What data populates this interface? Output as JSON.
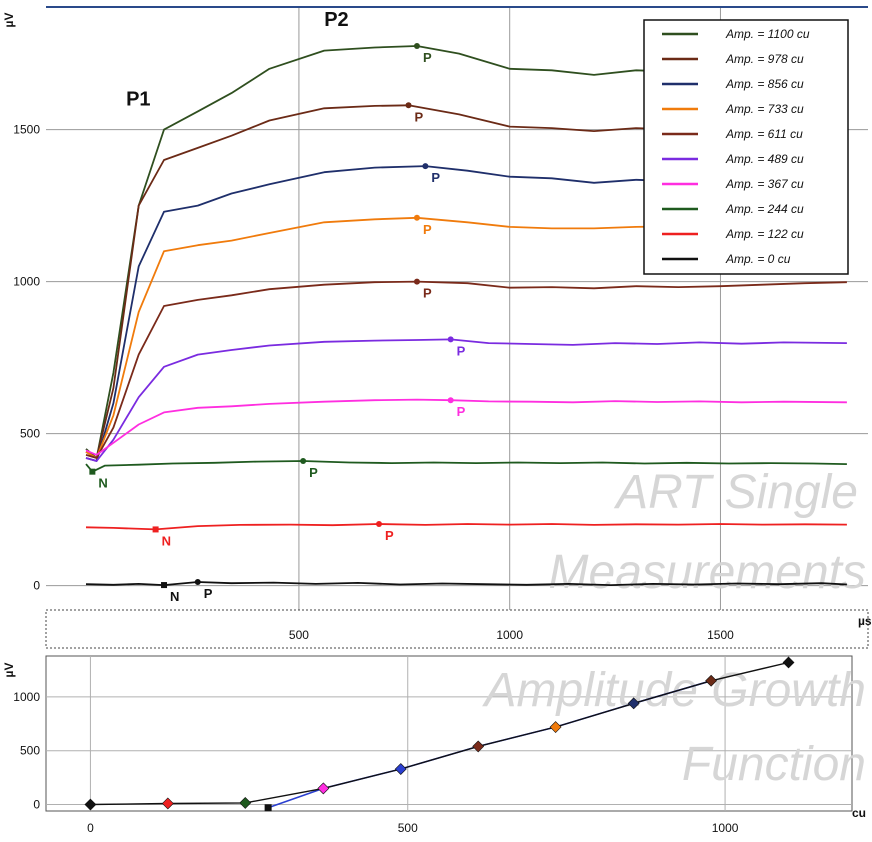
{
  "watermarks": {
    "top_line1": "ART Single",
    "top_line2": "Measurements",
    "bottom_line1": "Amplitude Growth",
    "bottom_line2": "Function"
  },
  "chart_data": [
    {
      "type": "line",
      "ylabel": "µV",
      "xlabel": "µs",
      "xlim": [
        -100,
        1850
      ],
      "ylim": [
        -80,
        1900
      ],
      "x_ticks": [
        500,
        1000,
        1500
      ],
      "y_ticks": [
        0,
        500,
        1000,
        1500
      ],
      "grid": true,
      "legend_position": "top-right",
      "annotations": [
        {
          "text": "P1",
          "x": 90,
          "y": 1580
        },
        {
          "text": "P2",
          "x": 560,
          "y": 1840
        }
      ],
      "series": [
        {
          "name": "Amp. = 1100 cu",
          "color": "#2f4f1f",
          "peaks": [
            {
              "label": "P",
              "x": 780,
              "y": 1775
            }
          ],
          "points": [
            [
              -5,
              450
            ],
            [
              20,
              420
            ],
            [
              60,
              700
            ],
            [
              120,
              1250
            ],
            [
              180,
              1500
            ],
            [
              260,
              1560
            ],
            [
              340,
              1620
            ],
            [
              430,
              1700
            ],
            [
              560,
              1760
            ],
            [
              680,
              1770
            ],
            [
              780,
              1775
            ],
            [
              880,
              1750
            ],
            [
              1000,
              1700
            ],
            [
              1100,
              1695
            ],
            [
              1200,
              1680
            ],
            [
              1300,
              1695
            ],
            [
              1400,
              1690
            ],
            [
              1500,
              1700
            ],
            [
              1600,
              1720
            ],
            [
              1700,
              1740
            ],
            [
              1800,
              1790
            ]
          ]
        },
        {
          "name": "Amp. = 978 cu",
          "color": "#6b2a16",
          "peaks": [
            {
              "label": "P",
              "x": 760,
              "y": 1580
            }
          ],
          "points": [
            [
              -5,
              440
            ],
            [
              20,
              420
            ],
            [
              60,
              650
            ],
            [
              120,
              1250
            ],
            [
              180,
              1400
            ],
            [
              260,
              1440
            ],
            [
              340,
              1480
            ],
            [
              430,
              1530
            ],
            [
              560,
              1570
            ],
            [
              680,
              1578
            ],
            [
              760,
              1580
            ],
            [
              880,
              1550
            ],
            [
              1000,
              1510
            ],
            [
              1100,
              1505
            ],
            [
              1200,
              1495
            ],
            [
              1300,
              1505
            ],
            [
              1400,
              1500
            ],
            [
              1500,
              1505
            ],
            [
              1600,
              1530
            ],
            [
              1700,
              1560
            ],
            [
              1800,
              1600
            ]
          ]
        },
        {
          "name": "Amp. = 856 cu",
          "color": "#1f2f6b",
          "peaks": [
            {
              "label": "P",
              "x": 800,
              "y": 1380
            }
          ],
          "points": [
            [
              -5,
              420
            ],
            [
              20,
              410
            ],
            [
              60,
              600
            ],
            [
              120,
              1050
            ],
            [
              180,
              1230
            ],
            [
              260,
              1250
            ],
            [
              340,
              1290
            ],
            [
              430,
              1320
            ],
            [
              560,
              1360
            ],
            [
              680,
              1375
            ],
            [
              800,
              1380
            ],
            [
              900,
              1365
            ],
            [
              1000,
              1345
            ],
            [
              1100,
              1340
            ],
            [
              1200,
              1325
            ],
            [
              1300,
              1335
            ],
            [
              1400,
              1330
            ],
            [
              1500,
              1335
            ],
            [
              1600,
              1350
            ],
            [
              1700,
              1370
            ],
            [
              1800,
              1395
            ]
          ]
        },
        {
          "name": "Amp. = 733 cu",
          "color": "#f07b0c",
          "peaks": [
            {
              "label": "P",
              "x": 780,
              "y": 1210
            }
          ],
          "points": [
            [
              -5,
              440
            ],
            [
              20,
              420
            ],
            [
              60,
              560
            ],
            [
              120,
              900
            ],
            [
              180,
              1100
            ],
            [
              260,
              1120
            ],
            [
              340,
              1135
            ],
            [
              430,
              1160
            ],
            [
              560,
              1195
            ],
            [
              680,
              1205
            ],
            [
              780,
              1210
            ],
            [
              900,
              1195
            ],
            [
              1000,
              1180
            ],
            [
              1100,
              1175
            ],
            [
              1200,
              1175
            ],
            [
              1300,
              1180
            ],
            [
              1400,
              1182
            ],
            [
              1500,
              1180
            ],
            [
              1600,
              1185
            ],
            [
              1700,
              1190
            ],
            [
              1800,
              1195
            ]
          ]
        },
        {
          "name": "Amp. = 611 cu",
          "color": "#7a2a1a",
          "peaks": [
            {
              "label": "P",
              "x": 780,
              "y": 1000
            }
          ],
          "points": [
            [
              -5,
              430
            ],
            [
              20,
              420
            ],
            [
              60,
              520
            ],
            [
              120,
              760
            ],
            [
              180,
              920
            ],
            [
              260,
              940
            ],
            [
              340,
              955
            ],
            [
              430,
              975
            ],
            [
              560,
              990
            ],
            [
              680,
              998
            ],
            [
              780,
              1000
            ],
            [
              900,
              995
            ],
            [
              1000,
              980
            ],
            [
              1100,
              982
            ],
            [
              1200,
              978
            ],
            [
              1300,
              985
            ],
            [
              1400,
              982
            ],
            [
              1500,
              985
            ],
            [
              1600,
              990
            ],
            [
              1700,
              995
            ],
            [
              1800,
              998
            ]
          ]
        },
        {
          "name": "Amp. = 489 cu",
          "color": "#7a2be0",
          "peaks": [
            {
              "label": "P",
              "x": 860,
              "y": 810
            }
          ],
          "points": [
            [
              -5,
              420
            ],
            [
              20,
              410
            ],
            [
              60,
              480
            ],
            [
              120,
              620
            ],
            [
              180,
              720
            ],
            [
              260,
              760
            ],
            [
              340,
              775
            ],
            [
              430,
              790
            ],
            [
              560,
              802
            ],
            [
              680,
              806
            ],
            [
              780,
              808
            ],
            [
              860,
              810
            ],
            [
              950,
              798
            ],
            [
              1050,
              795
            ],
            [
              1150,
              792
            ],
            [
              1250,
              798
            ],
            [
              1350,
              795
            ],
            [
              1450,
              800
            ],
            [
              1550,
              796
            ],
            [
              1650,
              800
            ],
            [
              1800,
              798
            ]
          ]
        },
        {
          "name": "Amp. = 367 cu",
          "color": "#ff2ee0",
          "peaks": [
            {
              "label": "P",
              "x": 860,
              "y": 610
            }
          ],
          "points": [
            [
              -5,
              445
            ],
            [
              20,
              430
            ],
            [
              60,
              470
            ],
            [
              120,
              530
            ],
            [
              180,
              570
            ],
            [
              260,
              585
            ],
            [
              340,
              590
            ],
            [
              430,
              598
            ],
            [
              560,
              605
            ],
            [
              680,
              610
            ],
            [
              780,
              612
            ],
            [
              860,
              610
            ],
            [
              950,
              606
            ],
            [
              1050,
              605
            ],
            [
              1150,
              603
            ],
            [
              1250,
              607
            ],
            [
              1350,
              604
            ],
            [
              1450,
              606
            ],
            [
              1550,
              603
            ],
            [
              1650,
              605
            ],
            [
              1800,
              603
            ]
          ]
        },
        {
          "name": "Amp. = 244 cu",
          "color": "#1f5a1f",
          "peaks": [
            {
              "label": "P",
              "x": 510,
              "y": 410
            },
            {
              "label": "N",
              "x": 10,
              "y": 375
            }
          ],
          "points": [
            [
              -5,
              400
            ],
            [
              10,
              375
            ],
            [
              40,
              395
            ],
            [
              120,
              398
            ],
            [
              200,
              402
            ],
            [
              300,
              404
            ],
            [
              400,
              408
            ],
            [
              510,
              410
            ],
            [
              620,
              405
            ],
            [
              720,
              403
            ],
            [
              820,
              405
            ],
            [
              920,
              403
            ],
            [
              1020,
              405
            ],
            [
              1120,
              403
            ],
            [
              1220,
              405
            ],
            [
              1320,
              402
            ],
            [
              1420,
              404
            ],
            [
              1520,
              402
            ],
            [
              1620,
              403
            ],
            [
              1720,
              402
            ],
            [
              1800,
              400
            ]
          ]
        },
        {
          "name": "Amp. = 122 cu",
          "color": "#ee2020",
          "peaks": [
            {
              "label": "N",
              "x": 160,
              "y": 185
            },
            {
              "label": "P",
              "x": 690,
              "y": 203
            }
          ],
          "points": [
            [
              -5,
              192
            ],
            [
              60,
              190
            ],
            [
              160,
              185
            ],
            [
              260,
              196
            ],
            [
              360,
              200
            ],
            [
              480,
              201
            ],
            [
              580,
              199
            ],
            [
              690,
              203
            ],
            [
              800,
              200
            ],
            [
              900,
              203
            ],
            [
              1000,
              201
            ],
            [
              1100,
              203
            ],
            [
              1200,
              200
            ],
            [
              1300,
              202
            ],
            [
              1400,
              201
            ],
            [
              1500,
              203
            ],
            [
              1600,
              201
            ],
            [
              1700,
              202
            ],
            [
              1800,
              201
            ]
          ]
        },
        {
          "name": "Amp. = 0 cu",
          "color": "#111111",
          "peaks": [
            {
              "label": "N",
              "x": 180,
              "y": 2
            },
            {
              "label": "P",
              "x": 260,
              "y": 12
            }
          ],
          "points": [
            [
              -5,
              5
            ],
            [
              60,
              3
            ],
            [
              120,
              6
            ],
            [
              180,
              2
            ],
            [
              260,
              12
            ],
            [
              340,
              8
            ],
            [
              440,
              10
            ],
            [
              540,
              6
            ],
            [
              640,
              9
            ],
            [
              740,
              4
            ],
            [
              840,
              7
            ],
            [
              940,
              5
            ],
            [
              1040,
              3
            ],
            [
              1140,
              6
            ],
            [
              1240,
              2
            ],
            [
              1340,
              6
            ],
            [
              1440,
              4
            ],
            [
              1540,
              7
            ],
            [
              1640,
              5
            ],
            [
              1740,
              8
            ],
            [
              1800,
              4
            ]
          ]
        }
      ]
    },
    {
      "type": "line",
      "ylabel": "µV",
      "xlabel": "cu",
      "xlim": [
        -70,
        1200
      ],
      "ylim": [
        -60,
        1380
      ],
      "x_ticks": [
        0,
        500,
        1000
      ],
      "y_ticks": [
        0,
        500,
        1000
      ],
      "grid": true,
      "series": [
        {
          "name": "",
          "color": "#111111",
          "points": [
            [
              0,
              0
            ],
            [
              122,
              10
            ],
            [
              244,
              15
            ],
            [
              367,
              150
            ],
            [
              489,
              330
            ],
            [
              611,
              540
            ],
            [
              733,
              720
            ],
            [
              856,
              940
            ],
            [
              978,
              1150
            ],
            [
              1100,
              1320
            ]
          ],
          "marker_colors": [
            "#111111",
            "#ee2020",
            "#1f5a1f",
            "#ff2ee0",
            "#2a3fd0",
            "#7a2a1a",
            "#f07b0c",
            "#1f2f6b",
            "#6b2a16",
            "#111111"
          ]
        },
        {
          "name": "",
          "color": "#2a3fd0",
          "points": [
            [
              280,
              -30
            ],
            [
              367,
              150
            ],
            [
              489,
              330
            ],
            [
              611,
              540
            ],
            [
              733,
              720
            ],
            [
              856,
              940
            ],
            [
              978,
              1150
            ]
          ]
        }
      ]
    }
  ]
}
